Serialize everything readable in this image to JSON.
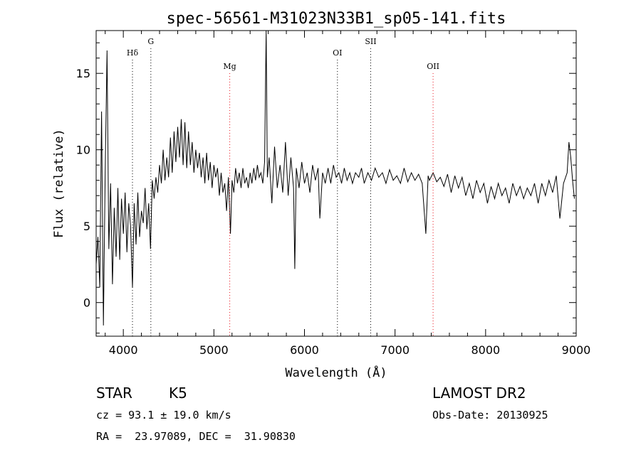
{
  "chart_data": {
    "type": "line",
    "title": "spec-56561-M31023N33B1_sp05-141.fits",
    "xlabel": "Wavelength (Å)",
    "ylabel": "Flux (relative)",
    "xlim": [
      3700,
      9000
    ],
    "ylim": [
      -2.2,
      17.8
    ],
    "xticks": [
      4000,
      5000,
      6000,
      7000,
      8000,
      9000
    ],
    "yticks": [
      0,
      5,
      10,
      15
    ],
    "grid": false,
    "series": [
      {
        "x": [
          3700,
          3720,
          3740,
          3760,
          3780,
          3800,
          3820,
          3840,
          3860,
          3880,
          3900,
          3920,
          3940,
          3960,
          3980,
          4000,
          4020,
          4040,
          4060,
          4080,
          4101,
          4120,
          4140,
          4160,
          4180,
          4200,
          4220,
          4240,
          4260,
          4280,
          4300,
          4320,
          4340,
          4360,
          4380,
          4400,
          4420,
          4440,
          4460,
          4480,
          4500,
          4520,
          4540,
          4560,
          4580,
          4600,
          4620,
          4640,
          4660,
          4680,
          4700,
          4720,
          4740,
          4760,
          4780,
          4800,
          4820,
          4840,
          4860,
          4880,
          4900,
          4920,
          4940,
          4960,
          4980,
          5000,
          5020,
          5040,
          5060,
          5080,
          5100,
          5120,
          5140,
          5160,
          5183,
          5200,
          5220,
          5240,
          5260,
          5280,
          5300,
          5320,
          5340,
          5360,
          5380,
          5400,
          5420,
          5440,
          5460,
          5480,
          5500,
          5520,
          5540,
          5560,
          5577,
          5590,
          5610,
          5640,
          5670,
          5700,
          5730,
          5760,
          5790,
          5820,
          5850,
          5880,
          5893,
          5910,
          5940,
          5970,
          6000,
          6030,
          6060,
          6090,
          6120,
          6150,
          6170,
          6200,
          6230,
          6260,
          6290,
          6320,
          6350,
          6380,
          6410,
          6440,
          6470,
          6500,
          6530,
          6563,
          6600,
          6630,
          6660,
          6700,
          6740,
          6780,
          6820,
          6860,
          6900,
          6940,
          6980,
          7020,
          7060,
          7100,
          7140,
          7180,
          7220,
          7260,
          7300,
          7340,
          7365,
          7380,
          7420,
          7460,
          7500,
          7540,
          7580,
          7620,
          7660,
          7700,
          7740,
          7780,
          7820,
          7860,
          7900,
          7940,
          7980,
          8020,
          8060,
          8100,
          8140,
          8180,
          8220,
          8260,
          8300,
          8340,
          8380,
          8420,
          8460,
          8500,
          8540,
          8580,
          8620,
          8660,
          8700,
          8740,
          8780,
          8820,
          8860,
          8900,
          8920,
          8940,
          8960,
          8980
        ],
        "y": [
          2.5,
          4.3,
          1.0,
          12.5,
          -1.5,
          8.5,
          16.5,
          3.5,
          7.8,
          1.2,
          6.2,
          3.0,
          7.5,
          2.8,
          6.8,
          4.5,
          7.2,
          3.3,
          6.5,
          5.0,
          1.0,
          6.5,
          3.8,
          7.2,
          4.3,
          6.0,
          5.2,
          7.5,
          4.8,
          6.5,
          3.5,
          8.0,
          6.8,
          8.2,
          7.2,
          9.0,
          7.8,
          10.0,
          8.0,
          9.5,
          8.2,
          10.8,
          8.5,
          11.2,
          9.2,
          11.5,
          9.5,
          12.0,
          9.0,
          11.8,
          8.8,
          11.2,
          9.0,
          10.5,
          8.5,
          10.0,
          8.8,
          9.8,
          8.2,
          9.5,
          7.8,
          9.8,
          8.0,
          9.2,
          7.5,
          9.0,
          8.2,
          8.8,
          7.0,
          8.5,
          7.2,
          7.8,
          6.0,
          8.2,
          4.5,
          8.0,
          7.2,
          8.8,
          7.8,
          8.5,
          7.5,
          8.8,
          7.8,
          8.2,
          7.5,
          8.5,
          7.8,
          8.8,
          8.0,
          9.0,
          8.2,
          8.5,
          7.8,
          9.2,
          17.8,
          8.2,
          9.5,
          6.5,
          10.2,
          7.5,
          9.0,
          7.2,
          10.5,
          7.0,
          9.5,
          7.5,
          2.2,
          8.8,
          7.5,
          9.2,
          7.8,
          8.5,
          7.2,
          9.0,
          8.0,
          8.8,
          5.5,
          8.5,
          7.8,
          8.8,
          7.8,
          9.0,
          8.2,
          8.5,
          7.8,
          8.8,
          8.0,
          8.5,
          7.8,
          8.5,
          8.2,
          8.8,
          7.8,
          8.5,
          8.0,
          8.8,
          8.2,
          8.5,
          7.8,
          8.7,
          8.0,
          8.3,
          7.8,
          8.8,
          7.9,
          8.5,
          8.0,
          8.4,
          7.8,
          4.5,
          8.3,
          8.0,
          8.5,
          7.9,
          8.2,
          7.6,
          8.4,
          7.2,
          8.3,
          7.5,
          8.2,
          7.0,
          7.8,
          6.8,
          8.0,
          7.2,
          7.8,
          6.5,
          7.6,
          6.8,
          7.8,
          7.0,
          7.5,
          6.5,
          7.8,
          7.0,
          7.6,
          6.8,
          7.5,
          7.0,
          7.8,
          6.5,
          7.8,
          7.0,
          8.0,
          7.2,
          8.3,
          5.5,
          7.8,
          8.5,
          10.5,
          9.5,
          8.0,
          6.8
        ]
      }
    ],
    "lines": [
      {
        "label": "Hδ",
        "wavelength": 4101,
        "color": "#000000"
      },
      {
        "label": "G",
        "wavelength": 4304,
        "color": "#000000"
      },
      {
        "label": "Mg",
        "wavelength": 5175,
        "color": "#e8141e"
      },
      {
        "label": "OI",
        "wavelength": 6364,
        "color": "#000000"
      },
      {
        "label": "SII",
        "wavelength": 6731,
        "color": "#000000"
      },
      {
        "label": "OII",
        "wavelength": 7420,
        "color": "#e8141e"
      }
    ]
  },
  "info": {
    "object_class": "STAR",
    "subclass": "K5",
    "survey": "LAMOST DR2",
    "cz": "cz = 93.1 ± 19.0 km/s",
    "obs_date": "Obs-Date: 20130925",
    "coords": "RA =  23.97089, DEC =  31.90830"
  }
}
